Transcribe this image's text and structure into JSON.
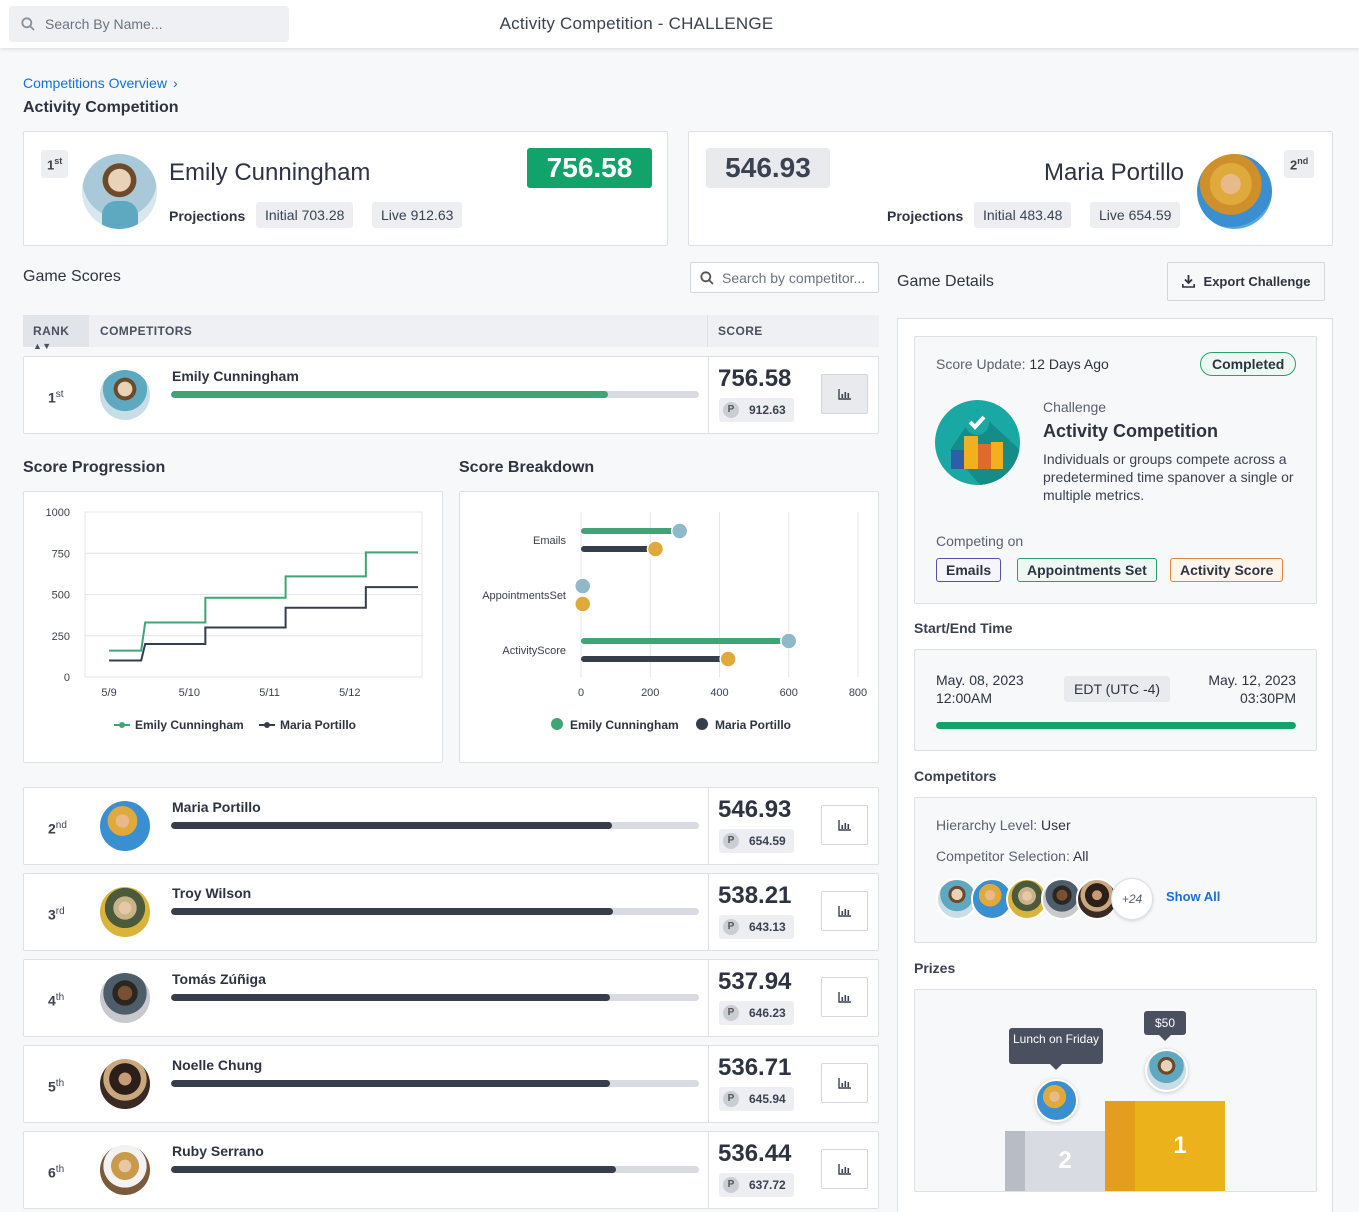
{
  "top": {
    "search_placeholder": "Search By Name...",
    "title": "Activity Competition - CHALLENGE"
  },
  "breadcrumb": {
    "link": "Competitions Overview",
    "chevron": "›"
  },
  "page_title": "Activity Competition",
  "leader": {
    "rank": "1",
    "rank_suffix": "st",
    "name": "Emily Cunningham",
    "score": "756.58",
    "projections_label": "Projections",
    "initial": "Initial 703.28",
    "live": "Live 912.63"
  },
  "runner": {
    "rank": "2",
    "rank_suffix": "nd",
    "name": "Maria Portillo",
    "score": "546.93",
    "projections_label": "Projections",
    "initial": "Initial 483.48",
    "live": "Live 654.59"
  },
  "game_scores": {
    "title": "Game Scores",
    "search_placeholder": "Search by competitor...",
    "col_rank": "RANK",
    "col_competitors": "COMPETITORS",
    "col_score": "SCORE"
  },
  "rows": [
    {
      "rank": "1",
      "suffix": "st",
      "name": "Emily Cunningham",
      "score": "756.58",
      "projected": "912.63",
      "progress": 0.827,
      "color": "#3fa476"
    },
    {
      "rank": "2",
      "suffix": "nd",
      "name": "Maria Portillo",
      "score": "546.93",
      "projected": "654.59",
      "progress": 0.835,
      "color": "#363d4b"
    },
    {
      "rank": "3",
      "suffix": "rd",
      "name": "Troy Wilson",
      "score": "538.21",
      "projected": "643.13",
      "progress": 0.837,
      "color": "#363d4b"
    },
    {
      "rank": "4",
      "suffix": "th",
      "name": "Tomás Zúñiga",
      "score": "537.94",
      "projected": "646.23",
      "progress": 0.832,
      "color": "#363d4b"
    },
    {
      "rank": "5",
      "suffix": "th",
      "name": "Noelle Chung",
      "score": "536.71",
      "projected": "645.94",
      "progress": 0.831,
      "color": "#363d4b"
    },
    {
      "rank": "6",
      "suffix": "th",
      "name": "Ruby Serrano",
      "score": "536.44",
      "projected": "637.72",
      "progress": 0.842,
      "color": "#363d4b"
    }
  ],
  "score_progression": {
    "title": "Score Progression"
  },
  "score_breakdown": {
    "title": "Score Breakdown"
  },
  "chart_data": [
    {
      "type": "line",
      "title": "Score Progression",
      "x": [
        "5/9",
        "5/10",
        "5/11",
        "5/12"
      ],
      "ylim": [
        0,
        1000
      ],
      "yticks": [
        0,
        250,
        500,
        750,
        1000
      ],
      "grid": true,
      "legend": "bottom",
      "series": [
        {
          "name": "Emily Cunningham",
          "color": "#3fa476",
          "points": [
            [
              0.0,
              160
            ],
            [
              0.4,
              160
            ],
            [
              0.45,
              330
            ],
            [
              1.0,
              330
            ],
            [
              1.2,
              330
            ],
            [
              1.2,
              480
            ],
            [
              2.0,
              480
            ],
            [
              2.2,
              480
            ],
            [
              2.2,
              610
            ],
            [
              3.0,
              610
            ],
            [
              3.2,
              610
            ],
            [
              3.2,
              755
            ],
            [
              3.85,
              755
            ]
          ]
        },
        {
          "name": "Maria Portillo",
          "color": "#363d4b",
          "points": [
            [
              0.0,
              100
            ],
            [
              0.4,
              100
            ],
            [
              0.45,
              200
            ],
            [
              1.0,
              200
            ],
            [
              1.2,
              200
            ],
            [
              1.2,
              300
            ],
            [
              2.0,
              300
            ],
            [
              2.2,
              300
            ],
            [
              2.2,
              420
            ],
            [
              3.0,
              420
            ],
            [
              3.2,
              420
            ],
            [
              3.2,
              545
            ],
            [
              3.85,
              545
            ]
          ]
        }
      ]
    },
    {
      "type": "bar",
      "orientation": "horizontal",
      "title": "Score Breakdown",
      "categories": [
        "Emails",
        "AppointmentsSet",
        "ActivityScore"
      ],
      "xlim": [
        0,
        800
      ],
      "xticks": [
        0,
        200,
        400,
        600,
        800
      ],
      "legend": "bottom",
      "series": [
        {
          "name": "Emily Cunningham",
          "color": "#3fa476",
          "values": [
            285,
            5,
            600
          ]
        },
        {
          "name": "Maria Portillo",
          "color": "#363d4b",
          "values": [
            215,
            5,
            425
          ]
        }
      ]
    }
  ],
  "game_details": {
    "title": "Game Details",
    "export_label": "Export Challenge"
  },
  "details": {
    "score_update_label": "Score Update:",
    "score_update_value": "12 Days Ago",
    "status": "Completed",
    "type_label": "Challenge",
    "name": "Activity Competition",
    "description": "Individuals or groups compete across a predetermined time spanover a single or multiple metrics.",
    "competing_on": "Competing on",
    "tags": [
      "Emails",
      "Appointments Set",
      "Activity Score"
    ],
    "tag_colors": [
      "#5b4fa8",
      "#2b9e6e",
      "#d98a3a"
    ]
  },
  "time": {
    "title": "Start/End Time",
    "start_date": "May. 08, 2023",
    "start_time": "12:00AM",
    "tz": "EDT (UTC -4)",
    "end_date": "May. 12, 2023",
    "end_time": "03:30PM",
    "progress": 1.0
  },
  "competitors": {
    "title": "Competitors",
    "hierarchy_label": "Hierarchy Level:",
    "hierarchy_value": "User",
    "selection_label": "Competitor Selection:",
    "selection_value": "All",
    "more": "+24",
    "show_all": "Show All"
  },
  "prizes": {
    "title": "Prizes",
    "second_prize": "Lunch on Friday",
    "first_prize": "$50",
    "second_place": "2",
    "first_place": "1"
  }
}
